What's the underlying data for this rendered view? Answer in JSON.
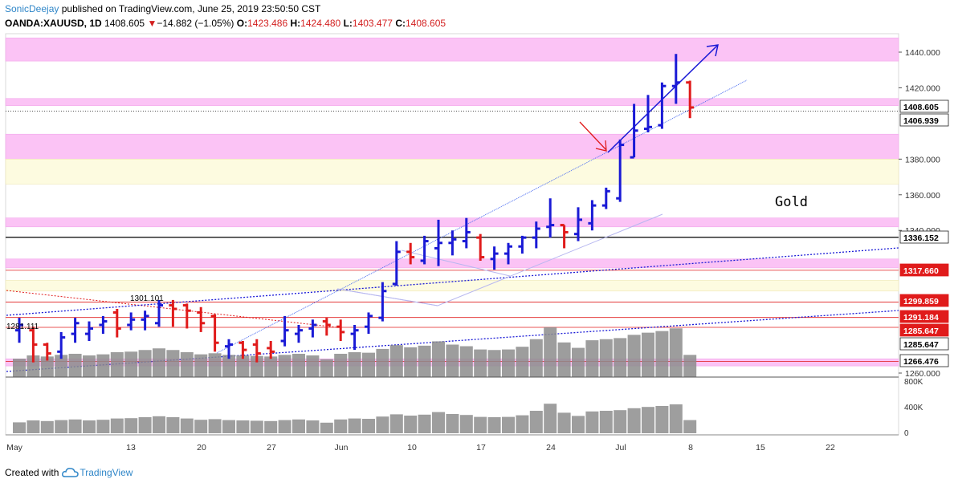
{
  "header": {
    "author": "SonicDeejay",
    "published": "published on TradingView.com, June 25, 2019 23:50:50 CST",
    "symbol": "OANDA:XAUUSD, 1D",
    "last": "1408.605",
    "change_arrow": "▼",
    "change": "−14.882 (−1.05%)",
    "o_label": "O:",
    "o_value": "1423.486",
    "h_label": "H:",
    "h_value": "1424.480",
    "l_label": "L:",
    "l_value": "1403.477",
    "c_label": "C:",
    "c_value": "1408.605"
  },
  "footer": {
    "created_with": "Created with",
    "brand": "TradingView"
  },
  "colors": {
    "up": "#1a1ad6",
    "down": "#e01b1b",
    "volume": "#8c8c8c",
    "zone_pink": "#fbc3f5",
    "zone_yellow": "#fdfbe0",
    "accent": "#2f86c8"
  },
  "chart_data": {
    "type": "ohlc",
    "title": "Gold",
    "y_range": [
      1255,
      1450
    ],
    "y_ticks": [
      "1440.000",
      "1420.000",
      "1380.000",
      "1360.000",
      "1340.000",
      "1260.000"
    ],
    "x_ticks": [
      "May",
      "13",
      "20",
      "27",
      "Jun",
      "10",
      "17",
      "24",
      "Jul",
      "8",
      "15",
      "22"
    ],
    "price_labels": [
      {
        "text": "1408.605",
        "style": "dark"
      },
      {
        "text": "1406.939",
        "style": "dark"
      },
      {
        "text": "1336.152",
        "style": "dark"
      },
      {
        "text": "1317.660",
        "style": "red"
      },
      {
        "text": "1299.859",
        "style": "red"
      },
      {
        "text": "1291.184",
        "style": "red"
      },
      {
        "text": "1285.647",
        "style": "red"
      },
      {
        "text": "1285.647",
        "style": "dark"
      },
      {
        "text": "1266.476",
        "style": "dark"
      }
    ],
    "level_lines": [
      {
        "price": 1406.9,
        "style": "dotted"
      },
      {
        "price": 1336.152,
        "style": "solid"
      },
      {
        "price": 1317.66,
        "style": "red"
      },
      {
        "price": 1299.859,
        "style": "red"
      },
      {
        "price": 1291.184,
        "style": "red"
      },
      {
        "price": 1285.647,
        "style": "red"
      },
      {
        "price": 1266.476,
        "style": "red"
      }
    ],
    "zones": [
      {
        "low": 1435,
        "high": 1448,
        "color": "pink"
      },
      {
        "low": 1410,
        "high": 1414,
        "color": "pink"
      },
      {
        "low": 1380,
        "high": 1394,
        "color": "pink"
      },
      {
        "low": 1366,
        "high": 1380,
        "color": "yellow"
      },
      {
        "low": 1342,
        "high": 1347,
        "color": "pink"
      },
      {
        "low": 1319,
        "high": 1324,
        "color": "pink"
      },
      {
        "low": 1306,
        "high": 1312,
        "color": "yellow"
      },
      {
        "low": 1264,
        "high": 1268,
        "color": "pink"
      }
    ],
    "annotations": [
      "1301.101",
      "1281.111"
    ],
    "bars": [
      {
        "o": 1284,
        "h": 1291,
        "l": 1277,
        "c": 1287
      },
      {
        "o": 1284,
        "h": 1286,
        "l": 1266,
        "c": 1276
      },
      {
        "o": 1276,
        "h": 1277,
        "l": 1267,
        "c": 1271
      },
      {
        "o": 1272,
        "h": 1283,
        "l": 1268,
        "c": 1280
      },
      {
        "o": 1282,
        "h": 1291,
        "l": 1277,
        "c": 1288
      },
      {
        "o": 1282,
        "h": 1289,
        "l": 1278,
        "c": 1285
      },
      {
        "o": 1287,
        "h": 1292,
        "l": 1282,
        "c": 1289
      },
      {
        "o": 1294,
        "h": 1296,
        "l": 1280,
        "c": 1285
      },
      {
        "o": 1287,
        "h": 1294,
        "l": 1284,
        "c": 1290
      },
      {
        "o": 1290,
        "h": 1295,
        "l": 1284,
        "c": 1292
      },
      {
        "o": 1288,
        "h": 1301,
        "l": 1286,
        "c": 1298
      },
      {
        "o": 1298,
        "h": 1301,
        "l": 1286,
        "c": 1296
      },
      {
        "o": 1298,
        "h": 1299,
        "l": 1285,
        "c": 1295
      },
      {
        "o": 1294,
        "h": 1297,
        "l": 1283,
        "c": 1288
      },
      {
        "o": 1292,
        "h": 1293,
        "l": 1272,
        "c": 1277
      },
      {
        "o": 1275,
        "h": 1279,
        "l": 1268,
        "c": 1276
      },
      {
        "o": 1277,
        "h": 1278,
        "l": 1268,
        "c": 1273
      },
      {
        "o": 1276,
        "h": 1279,
        "l": 1266,
        "c": 1271
      },
      {
        "o": 1274,
        "h": 1278,
        "l": 1268,
        "c": 1272
      },
      {
        "o": 1278,
        "h": 1292,
        "l": 1275,
        "c": 1284
      },
      {
        "o": 1282,
        "h": 1287,
        "l": 1277,
        "c": 1284
      },
      {
        "o": 1285,
        "h": 1290,
        "l": 1280,
        "c": 1287
      },
      {
        "o": 1289,
        "h": 1291,
        "l": 1281,
        "c": 1287
      },
      {
        "o": 1286,
        "h": 1290,
        "l": 1278,
        "c": 1283
      },
      {
        "o": 1282,
        "h": 1287,
        "l": 1273,
        "c": 1284
      },
      {
        "o": 1286,
        "h": 1294,
        "l": 1282,
        "c": 1292
      },
      {
        "o": 1291,
        "h": 1311,
        "l": 1289,
        "c": 1306
      },
      {
        "o": 1310,
        "h": 1334,
        "l": 1309,
        "c": 1328
      },
      {
        "o": 1328,
        "h": 1333,
        "l": 1321,
        "c": 1325
      },
      {
        "o": 1323,
        "h": 1337,
        "l": 1321,
        "c": 1334
      },
      {
        "o": 1330,
        "h": 1346,
        "l": 1320,
        "c": 1333
      },
      {
        "o": 1333,
        "h": 1340,
        "l": 1326,
        "c": 1335
      },
      {
        "o": 1334,
        "h": 1347,
        "l": 1330,
        "c": 1339
      },
      {
        "o": 1336,
        "h": 1338,
        "l": 1323,
        "c": 1325
      },
      {
        "o": 1324,
        "h": 1331,
        "l": 1318,
        "c": 1327
      },
      {
        "o": 1327,
        "h": 1333,
        "l": 1321,
        "c": 1331
      },
      {
        "o": 1331,
        "h": 1337,
        "l": 1327,
        "c": 1336
      },
      {
        "o": 1336,
        "h": 1345,
        "l": 1330,
        "c": 1341
      },
      {
        "o": 1342,
        "h": 1358,
        "l": 1336,
        "c": 1343
      },
      {
        "o": 1343,
        "h": 1343,
        "l": 1330,
        "c": 1339
      },
      {
        "o": 1338,
        "h": 1353,
        "l": 1334,
        "c": 1346
      },
      {
        "o": 1344,
        "h": 1357,
        "l": 1340,
        "c": 1354
      },
      {
        "o": 1354,
        "h": 1364,
        "l": 1352,
        "c": 1362
      },
      {
        "o": 1358,
        "h": 1391,
        "l": 1356,
        "c": 1388
      },
      {
        "o": 1381,
        "h": 1411,
        "l": 1381,
        "c": 1396
      },
      {
        "o": 1397,
        "h": 1416,
        "l": 1395,
        "c": 1398
      },
      {
        "o": 1399,
        "h": 1423,
        "l": 1397,
        "c": 1421
      },
      {
        "o": 1421,
        "h": 1439,
        "l": 1411,
        "c": 1423
      },
      {
        "o": 1423,
        "h": 1424,
        "l": 1403,
        "c": 1409
      }
    ],
    "volume": [
      170,
      200,
      190,
      205,
      215,
      200,
      210,
      230,
      235,
      250,
      265,
      250,
      230,
      210,
      220,
      205,
      200,
      195,
      190,
      205,
      215,
      200,
      165,
      215,
      230,
      225,
      260,
      295,
      275,
      290,
      330,
      300,
      285,
      255,
      250,
      255,
      280,
      350,
      460,
      320,
      270,
      340,
      350,
      360,
      390,
      410,
      425,
      450,
      205
    ]
  }
}
